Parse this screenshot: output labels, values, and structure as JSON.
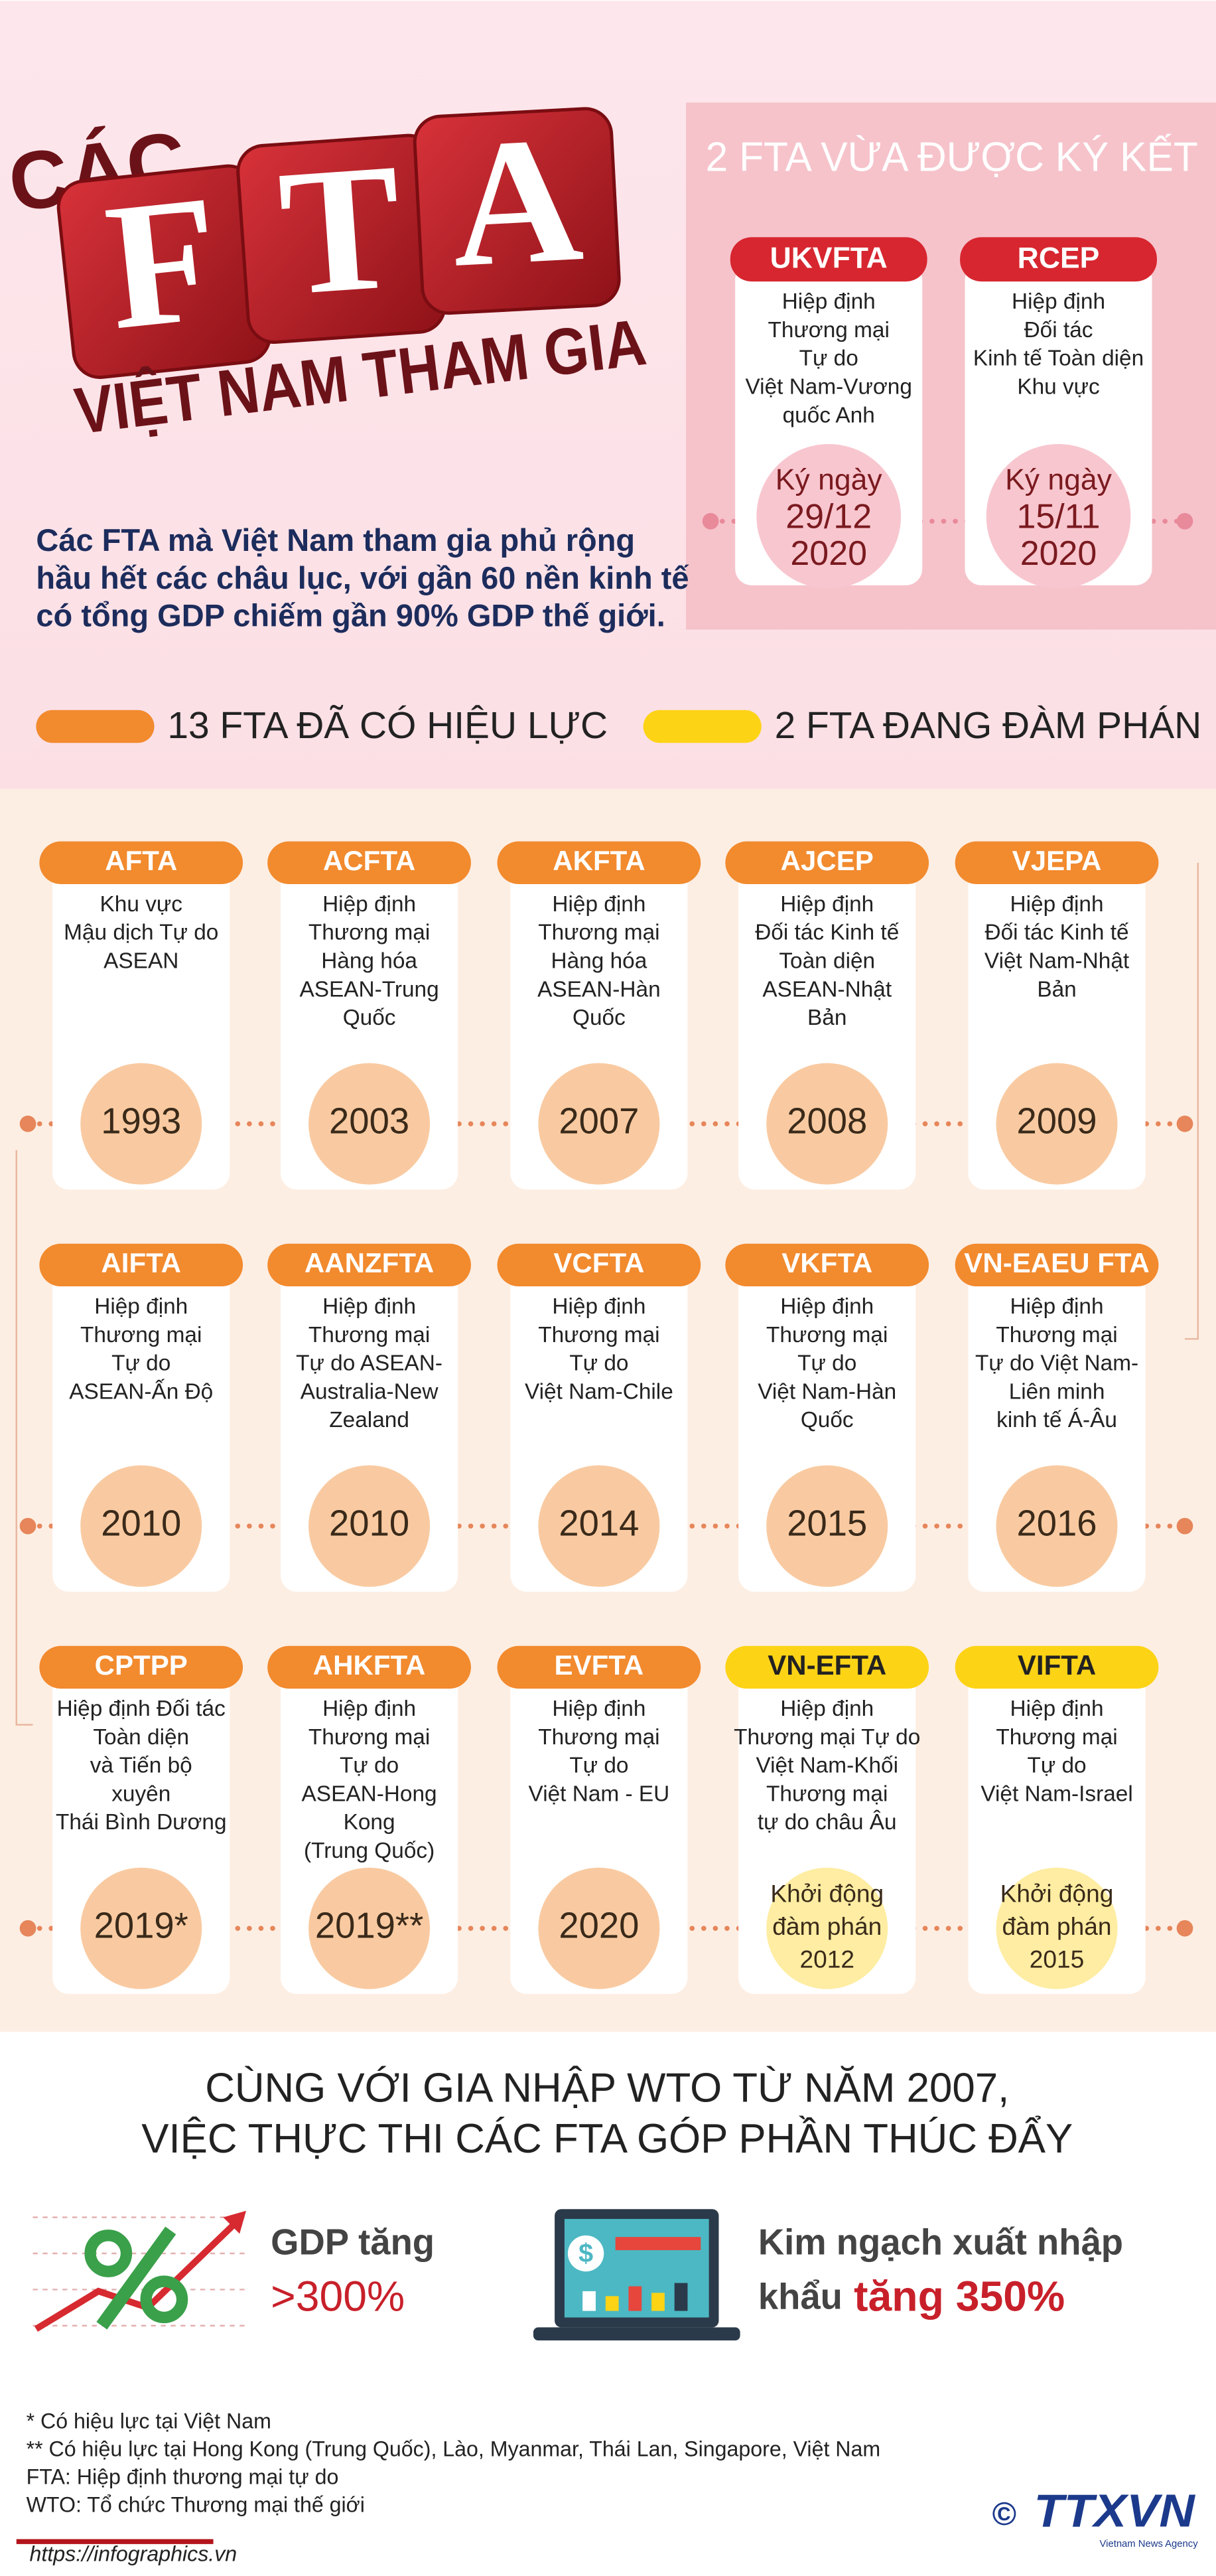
{
  "title": {
    "pre": "CÁC",
    "letters": [
      "F",
      "T",
      "A"
    ],
    "sub": "VIỆT NAM THAM GIA"
  },
  "signed": {
    "heading": "2 FTA VỪA ĐƯỢC KÝ KẾT",
    "items": [
      {
        "name": "UKVFTA",
        "lines": [
          "Hiệp định",
          "Thương mại",
          "Tự do",
          "Việt Nam-Vương",
          "quốc Anh"
        ],
        "date": [
          "Ký ngày",
          "29/12",
          "2020"
        ]
      },
      {
        "name": "RCEP",
        "lines": [
          "Hiệp định",
          "Đối tác",
          "Kinh tế Toàn diện",
          "Khu vực"
        ],
        "date": [
          "Ký ngày",
          "15/11",
          "2020"
        ]
      }
    ]
  },
  "intro": [
    "Các FTA mà Việt Nam tham gia phủ rộng",
    "hầu hết các châu lục, với gần 60 nền kinh tế",
    "có tổng GDP chiếm gần 90% GDP thế giới."
  ],
  "legend": [
    {
      "label": "13 FTA ĐÃ CÓ HIỆU LỰC",
      "color": "#f28a2e"
    },
    {
      "label": "2 FTA ĐANG ĐÀM PHÁN",
      "color": "#fdd316"
    }
  ],
  "ftas": [
    {
      "name": "AFTA",
      "lines": [
        "Khu vực",
        "Mậu dịch Tự do",
        "ASEAN"
      ],
      "year": [
        "1993"
      ],
      "color": "#f28a2e"
    },
    {
      "name": "ACFTA",
      "lines": [
        "Hiệp định",
        "Thương mại",
        "Hàng hóa",
        "ASEAN-Trung",
        "Quốc"
      ],
      "year": [
        "2003"
      ],
      "color": "#f28a2e"
    },
    {
      "name": "AKFTA",
      "lines": [
        "Hiệp định",
        "Thương mại",
        "Hàng hóa",
        "ASEAN-Hàn",
        "Quốc"
      ],
      "year": [
        "2007"
      ],
      "color": "#f28a2e"
    },
    {
      "name": "AJCEP",
      "lines": [
        "Hiệp định",
        "Đối tác Kinh tế",
        "Toàn diện",
        "ASEAN-Nhật",
        "Bản"
      ],
      "year": [
        "2008"
      ],
      "color": "#f28a2e"
    },
    {
      "name": "VJEPA",
      "lines": [
        "Hiệp định",
        "Đối tác Kinh tế",
        "Việt Nam-Nhật",
        "Bản"
      ],
      "year": [
        "2009"
      ],
      "color": "#f28a2e"
    },
    {
      "name": "AIFTA",
      "lines": [
        "Hiệp định",
        "Thương mại",
        "Tự do",
        "ASEAN-Ấn Độ"
      ],
      "year": [
        "2010"
      ],
      "color": "#f28a2e"
    },
    {
      "name": "AANZFTA",
      "lines": [
        "Hiệp định",
        "Thương mại",
        "Tự do ASEAN-",
        "Australia-New",
        "Zealand"
      ],
      "year": [
        "2010"
      ],
      "color": "#f28a2e"
    },
    {
      "name": "VCFTA",
      "lines": [
        "Hiệp định",
        "Thương mại",
        "Tự do",
        "Việt Nam-Chile"
      ],
      "year": [
        "2014"
      ],
      "color": "#f28a2e"
    },
    {
      "name": "VKFTA",
      "lines": [
        "Hiệp định",
        "Thương mại",
        "Tự do",
        "Việt Nam-Hàn",
        "Quốc"
      ],
      "year": [
        "2015"
      ],
      "color": "#f28a2e"
    },
    {
      "name": "VN-EAEU FTA",
      "lines": [
        "Hiệp định",
        "Thương mại",
        "Tự do Việt Nam-",
        "Liên minh",
        "kinh tế Á-Âu"
      ],
      "year": [
        "2016"
      ],
      "color": "#f28a2e"
    },
    {
      "name": "CPTPP",
      "lines": [
        "Hiệp định Đối tác",
        "Toàn diện",
        "và Tiến bộ",
        "xuyên",
        "Thái Bình Dương"
      ],
      "year": [
        "2019*"
      ],
      "color": "#f28a2e"
    },
    {
      "name": "AHKFTA",
      "lines": [
        "Hiệp định",
        "Thương mại",
        "Tự do",
        "ASEAN-Hong",
        "Kong",
        "(Trung Quốc)"
      ],
      "year": [
        "2019**"
      ],
      "color": "#f28a2e"
    },
    {
      "name": "EVFTA",
      "lines": [
        "Hiệp định",
        "Thương mại",
        "Tự do",
        "Việt Nam - EU"
      ],
      "year": [
        "2020"
      ],
      "color": "#f28a2e"
    },
    {
      "name": "VN-EFTA",
      "lines": [
        "Hiệp định",
        "Thương mại Tự do",
        "Việt Nam-Khối",
        "Thương mại",
        "tự do châu Âu"
      ],
      "year": [
        "Khởi động",
        "đàm phán",
        "2012"
      ],
      "color": "#fdd316"
    },
    {
      "name": "VIFTA",
      "lines": [
        "Hiệp định",
        "Thương mại",
        "Tự do",
        "Việt Nam-Israel"
      ],
      "year": [
        "Khởi động",
        "đàm phán",
        "2015"
      ],
      "color": "#fdd316"
    }
  ],
  "summary": {
    "heading": [
      "CÙNG VỚI GIA NHẬP WTO TỪ NĂM 2007,",
      "VIỆC THỰC THI CÁC FTA GÓP PHẦN THÚC ĐẨY"
    ],
    "stats": [
      {
        "label": [
          "GDP tăng"
        ],
        "value": ">300%"
      },
      {
        "label": [
          "Kim ngạch xuất nhập",
          "khẩu"
        ],
        "value": "tăng 350%"
      }
    ]
  },
  "notes": [
    "* Có hiệu lực tại Việt Nam",
    "** Có hiệu lực tại Hong Kong (Trung Quốc), Lào, Myanmar, Thái Lan, Singapore, Việt Nam",
    "FTA: Hiệp định thương mại tự do",
    "WTO: Tổ chức Thương mại thế giới"
  ],
  "footer": {
    "url": "https://infographics.vn",
    "copyright": "©",
    "logo": "TTXVN",
    "agency": "Vietnam News Agency"
  }
}
